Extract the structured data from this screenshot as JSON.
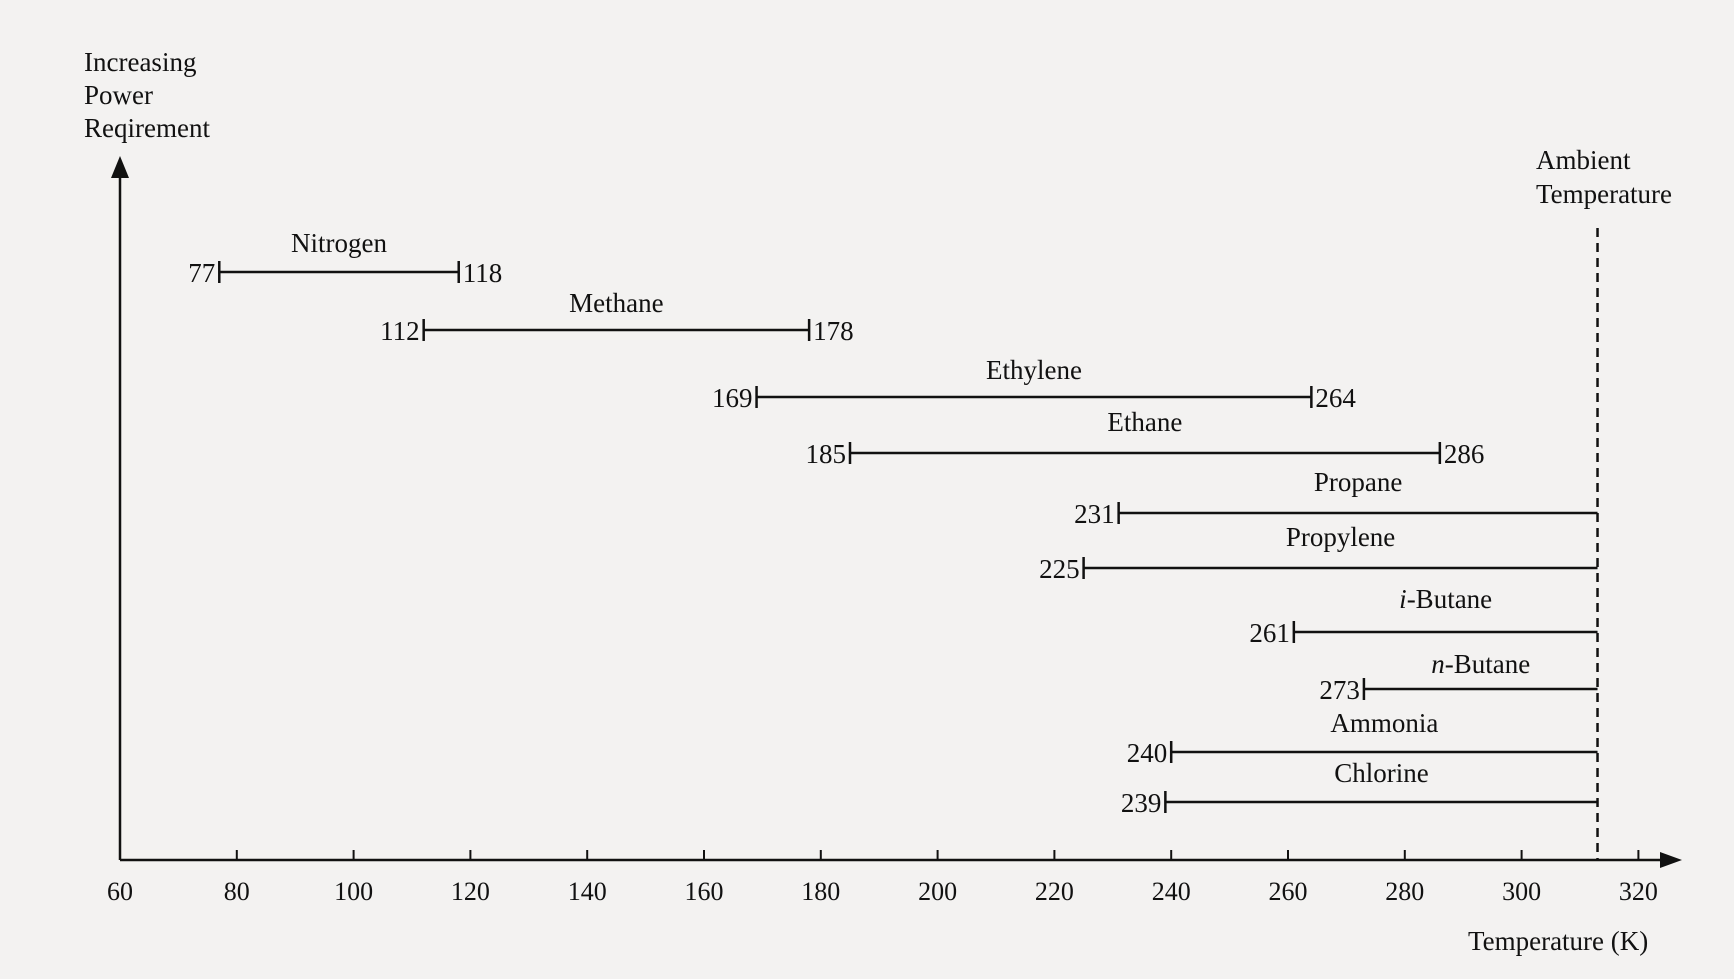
{
  "chart_data": {
    "type": "range-bar",
    "ylabel": [
      "Increasing",
      "Power",
      "Reqirement"
    ],
    "xlabel": "Temperature (K)",
    "xlim": [
      60,
      320
    ],
    "xticks": [
      60,
      80,
      100,
      120,
      140,
      160,
      180,
      200,
      220,
      240,
      260,
      280,
      300,
      320
    ],
    "ambient": {
      "label": [
        "Ambient",
        "Temperature"
      ],
      "value": 313
    },
    "series": [
      {
        "name": "Nitrogen",
        "start": 77,
        "end": 118,
        "end_label": "118"
      },
      {
        "name": "Methane",
        "start": 112,
        "end": 178,
        "end_label": "178"
      },
      {
        "name": "Ethylene",
        "start": 169,
        "end": 264,
        "end_label": "264"
      },
      {
        "name": "Ethane",
        "start": 185,
        "end": 286,
        "end_label": "286"
      },
      {
        "name": "Propane",
        "start": 231,
        "end": 313
      },
      {
        "name": "Propylene",
        "start": 225,
        "end": 313
      },
      {
        "name": "i-Butane",
        "prefix": "i",
        "rest": "-Butane",
        "start": 261,
        "end": 313
      },
      {
        "name": "n-Butane",
        "prefix": "n",
        "rest": "-Butane",
        "start": 273,
        "end": 313
      },
      {
        "name": "Ammonia",
        "start": 240,
        "end": 313
      },
      {
        "name": "Chlorine",
        "start": 239,
        "end": 313
      }
    ]
  }
}
